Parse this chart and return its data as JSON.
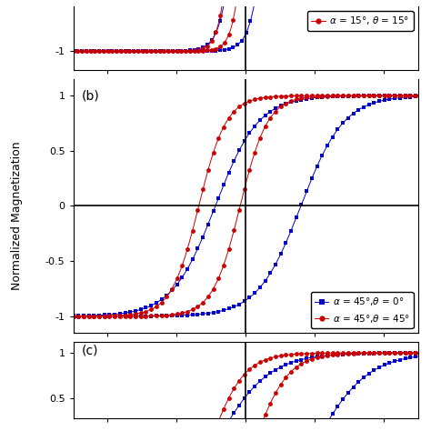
{
  "blue_color": "#0000cc",
  "red_color": "#cc0000",
  "panel_b_label": "(b)",
  "panel_c_label": "(c)",
  "panel_b_legend_blue": "$\\alpha$ = 45°,$\\theta$ = 0°",
  "panel_b_legend_red": "$\\alpha$ = 45°,$\\theta$ = 45°",
  "panel_a_legend_red": "$\\alpha$ = 15°, $\\theta$ = 15°",
  "ylabel": "Normalized Magnetization",
  "background": "#ffffff",
  "panel_b_yticks": [
    -1,
    -0.5,
    0,
    0.5,
    1
  ],
  "panel_b_ytick_labels": [
    "-1",
    "-0.5",
    "0",
    "0.5",
    "1"
  ],
  "panel_a_yticks": [
    -1
  ],
  "panel_a_ytick_labels": [
    "-1"
  ],
  "panel_c_yticks": [
    0.5,
    1
  ],
  "panel_c_ytick_labels": [
    "0.5",
    "1"
  ],
  "xlim": [
    -2.5,
    2.5
  ],
  "panel_b_ylim": [
    -1.15,
    1.15
  ],
  "panel_a_ylim": [
    -1.12,
    -0.72
  ],
  "panel_c_ylim": [
    0.28,
    1.12
  ],
  "blue_b_coercivity": 0.62,
  "blue_b_bias": 0.18,
  "blue_b_steepness": 1.6,
  "red_b_coercivity": 0.3,
  "red_b_bias": -0.38,
  "red_b_steepness": 2.5,
  "blue_a_coercivity": 0.22,
  "blue_a_bias": 0.1,
  "blue_a_steepness": 4.5,
  "red_a_coercivity": 0.1,
  "red_a_bias": -0.08,
  "red_a_steepness": 5.5,
  "blue_c_coercivity": 0.72,
  "blue_c_bias": 0.28,
  "blue_c_steepness": 1.3,
  "red_c_coercivity": 0.32,
  "red_c_bias": -0.2,
  "red_c_steepness": 2.0,
  "n_points": 400,
  "marker_step_b": 6,
  "marker_step_a": 5,
  "marker_step_c": 6,
  "marker_size": 3.5,
  "linewidth": 0.7
}
